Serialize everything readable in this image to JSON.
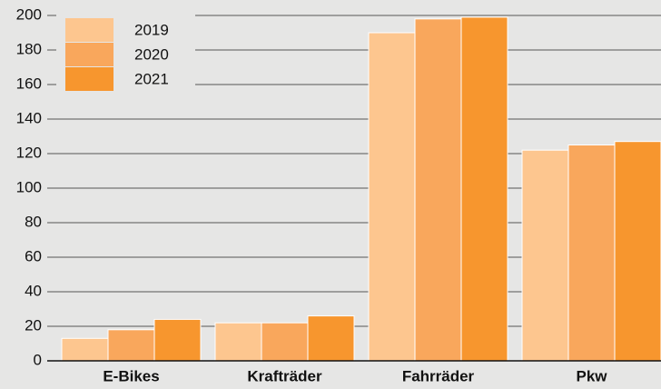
{
  "chart_data": {
    "type": "bar",
    "categories": [
      "E-Bikes",
      "Krafträder",
      "Fahrräder",
      "Pkw"
    ],
    "series": [
      {
        "name": "2019",
        "color": "#fdc68f",
        "values": [
          13,
          22,
          190,
          122
        ]
      },
      {
        "name": "2020",
        "color": "#f9a75c",
        "values": [
          18,
          22,
          198,
          125
        ]
      },
      {
        "name": "2021",
        "color": "#f7962e",
        "values": [
          24,
          26,
          199,
          127
        ]
      }
    ],
    "ylim": [
      0,
      200
    ],
    "yticks": [
      0,
      20,
      40,
      60,
      80,
      100,
      120,
      140,
      160,
      180,
      200
    ],
    "grid": true,
    "legend": "top-left"
  }
}
